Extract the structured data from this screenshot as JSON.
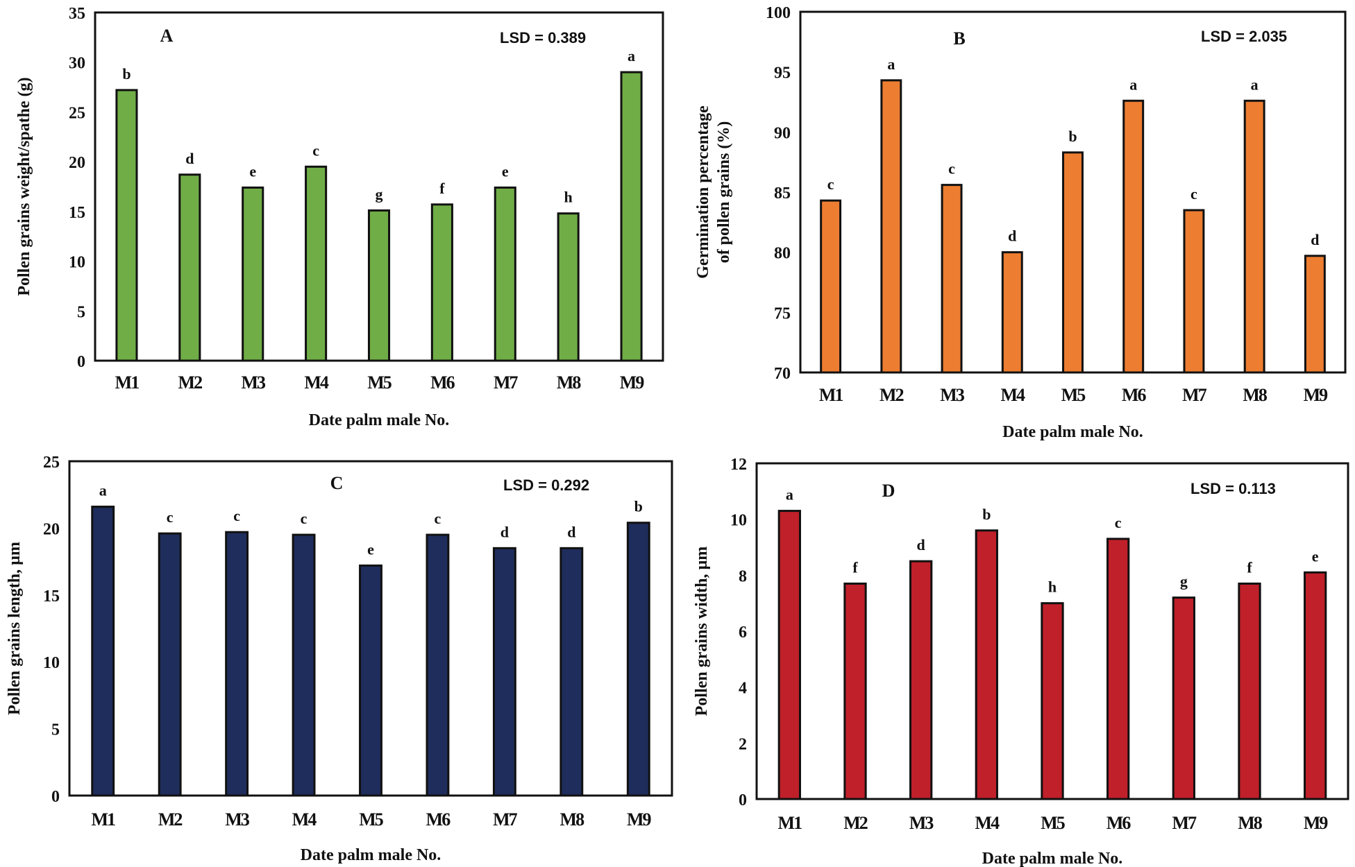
{
  "chart_data": [
    {
      "type": "bar",
      "panel": "A",
      "title": "",
      "lsd": "LSD = 0.389",
      "xlabel": "Date palm  male No.",
      "ylabel": "Pollen grains weight/spathe (g)",
      "ylabel_lines": [
        "Pollen grains weight/spathe  (g)"
      ],
      "ylim": [
        0,
        35
      ],
      "yticks": [
        0,
        5,
        10,
        15,
        20,
        25,
        30,
        35
      ],
      "categories": [
        "M1",
        "M2",
        "M3",
        "M4",
        "M5",
        "M6",
        "M7",
        "M8",
        "M9"
      ],
      "values": [
        27.2,
        18.7,
        17.4,
        19.5,
        15.1,
        15.7,
        17.4,
        14.8,
        29.0
      ],
      "significance": [
        "b",
        "d",
        "e",
        "c",
        "g",
        "f",
        "e",
        "h",
        "a"
      ],
      "color": "#70AD47",
      "grid": false,
      "legend": "none"
    },
    {
      "type": "bar",
      "panel": "B",
      "title": "",
      "lsd": "LSD = 2.035",
      "xlabel": "Date palm  male No.",
      "ylabel": "Germination percentage of pollen grains (%)",
      "ylabel_lines": [
        "Germination  percentage",
        "of pollen  grains  (%)"
      ],
      "ylim": [
        70,
        100
      ],
      "yticks": [
        70,
        75,
        80,
        85,
        90,
        95,
        100
      ],
      "categories": [
        "M1",
        "M2",
        "M3",
        "M4",
        "M5",
        "M6",
        "M7",
        "M8",
        "M9"
      ],
      "values": [
        84.3,
        94.3,
        85.6,
        80.0,
        88.3,
        92.6,
        83.5,
        92.6,
        79.7
      ],
      "significance": [
        "c",
        "a",
        "c",
        "d",
        "b",
        "a",
        "c",
        "a",
        "d"
      ],
      "color": "#ED7D31",
      "grid": false,
      "legend": "none"
    },
    {
      "type": "bar",
      "panel": "C",
      "title": "",
      "lsd": "LSD = 0.292",
      "xlabel": "Date palm  male No.",
      "ylabel": "Pollen grains length, µm",
      "ylabel_lines": [
        "Pollen  grains  length,  µm"
      ],
      "ylim": [
        0,
        25
      ],
      "yticks": [
        0,
        5,
        10,
        15,
        20,
        25
      ],
      "categories": [
        "M1",
        "M2",
        "M3",
        "M4",
        "M5",
        "M6",
        "M7",
        "M8",
        "M9"
      ],
      "values": [
        21.6,
        19.6,
        19.7,
        19.5,
        17.2,
        19.5,
        18.5,
        18.5,
        20.4
      ],
      "significance": [
        "a",
        "c",
        "c",
        "c",
        "e",
        "c",
        "d",
        "d",
        "b"
      ],
      "color": "#1F2D5C",
      "grid": false,
      "legend": "none"
    },
    {
      "type": "bar",
      "panel": "D",
      "title": "",
      "lsd": "LSD = 0.113",
      "xlabel": "Date palm  male No.",
      "ylabel": "Pollen grains width, µm",
      "ylabel_lines": [
        "Pollen  grains  width,  µm"
      ],
      "ylim": [
        0,
        12
      ],
      "yticks": [
        0,
        2,
        4,
        6,
        8,
        10,
        12
      ],
      "categories": [
        "M1",
        "M2",
        "M3",
        "M4",
        "M5",
        "M6",
        "M7",
        "M8",
        "M9"
      ],
      "values": [
        10.3,
        7.7,
        8.5,
        9.6,
        7.0,
        9.3,
        7.2,
        7.7,
        8.1
      ],
      "significance": [
        "a",
        "f",
        "d",
        "b",
        "h",
        "c",
        "g",
        "f",
        "e"
      ],
      "color": "#C0202A",
      "grid": false,
      "legend": "none"
    }
  ]
}
